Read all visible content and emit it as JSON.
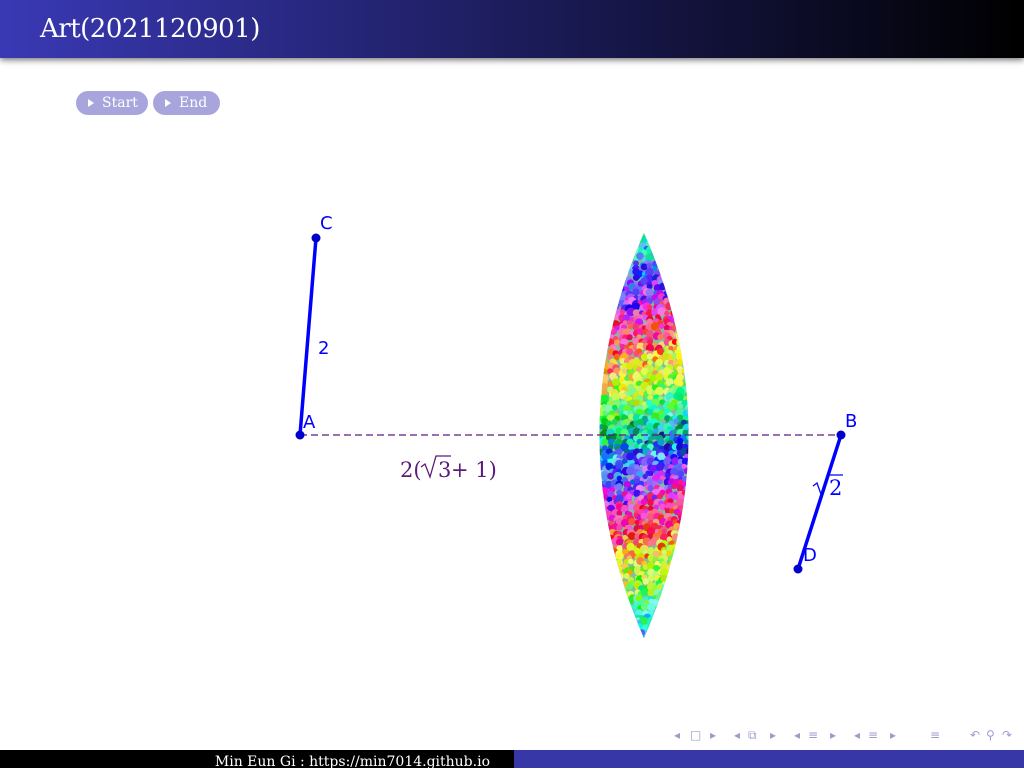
{
  "header": {
    "title": "Art(2021120901)"
  },
  "buttons": {
    "start_label": "Start",
    "end_label": "End"
  },
  "diagram": {
    "points": {
      "A": "A",
      "B": "B",
      "C": "C",
      "D": "D"
    },
    "labels": {
      "ac_length": "2",
      "ab_length_prefix": "2(",
      "ab_length_radicand": "3",
      "ab_length_suffix": " + 1)",
      "bd_length_radicand": "2"
    },
    "colors": {
      "segment": "#0000ff",
      "point": "#0000cc",
      "dashed": "#5c1a7a",
      "math": "#5c1a7a"
    }
  },
  "footer": {
    "text": "Min Eun Gi : https://min7014.github.io"
  },
  "navigation": {
    "icons": [
      "nav-left-arrow",
      "nav-frame",
      "nav-right-arrow",
      "nav-left-arrow",
      "nav-subsection",
      "nav-right-arrow",
      "nav-left-arrow",
      "nav-section",
      "nav-right-arrow",
      "nav-left-arrow",
      "nav-section",
      "nav-right-arrow",
      "nav-toc",
      "nav-back",
      "nav-search",
      "nav-forward"
    ]
  }
}
